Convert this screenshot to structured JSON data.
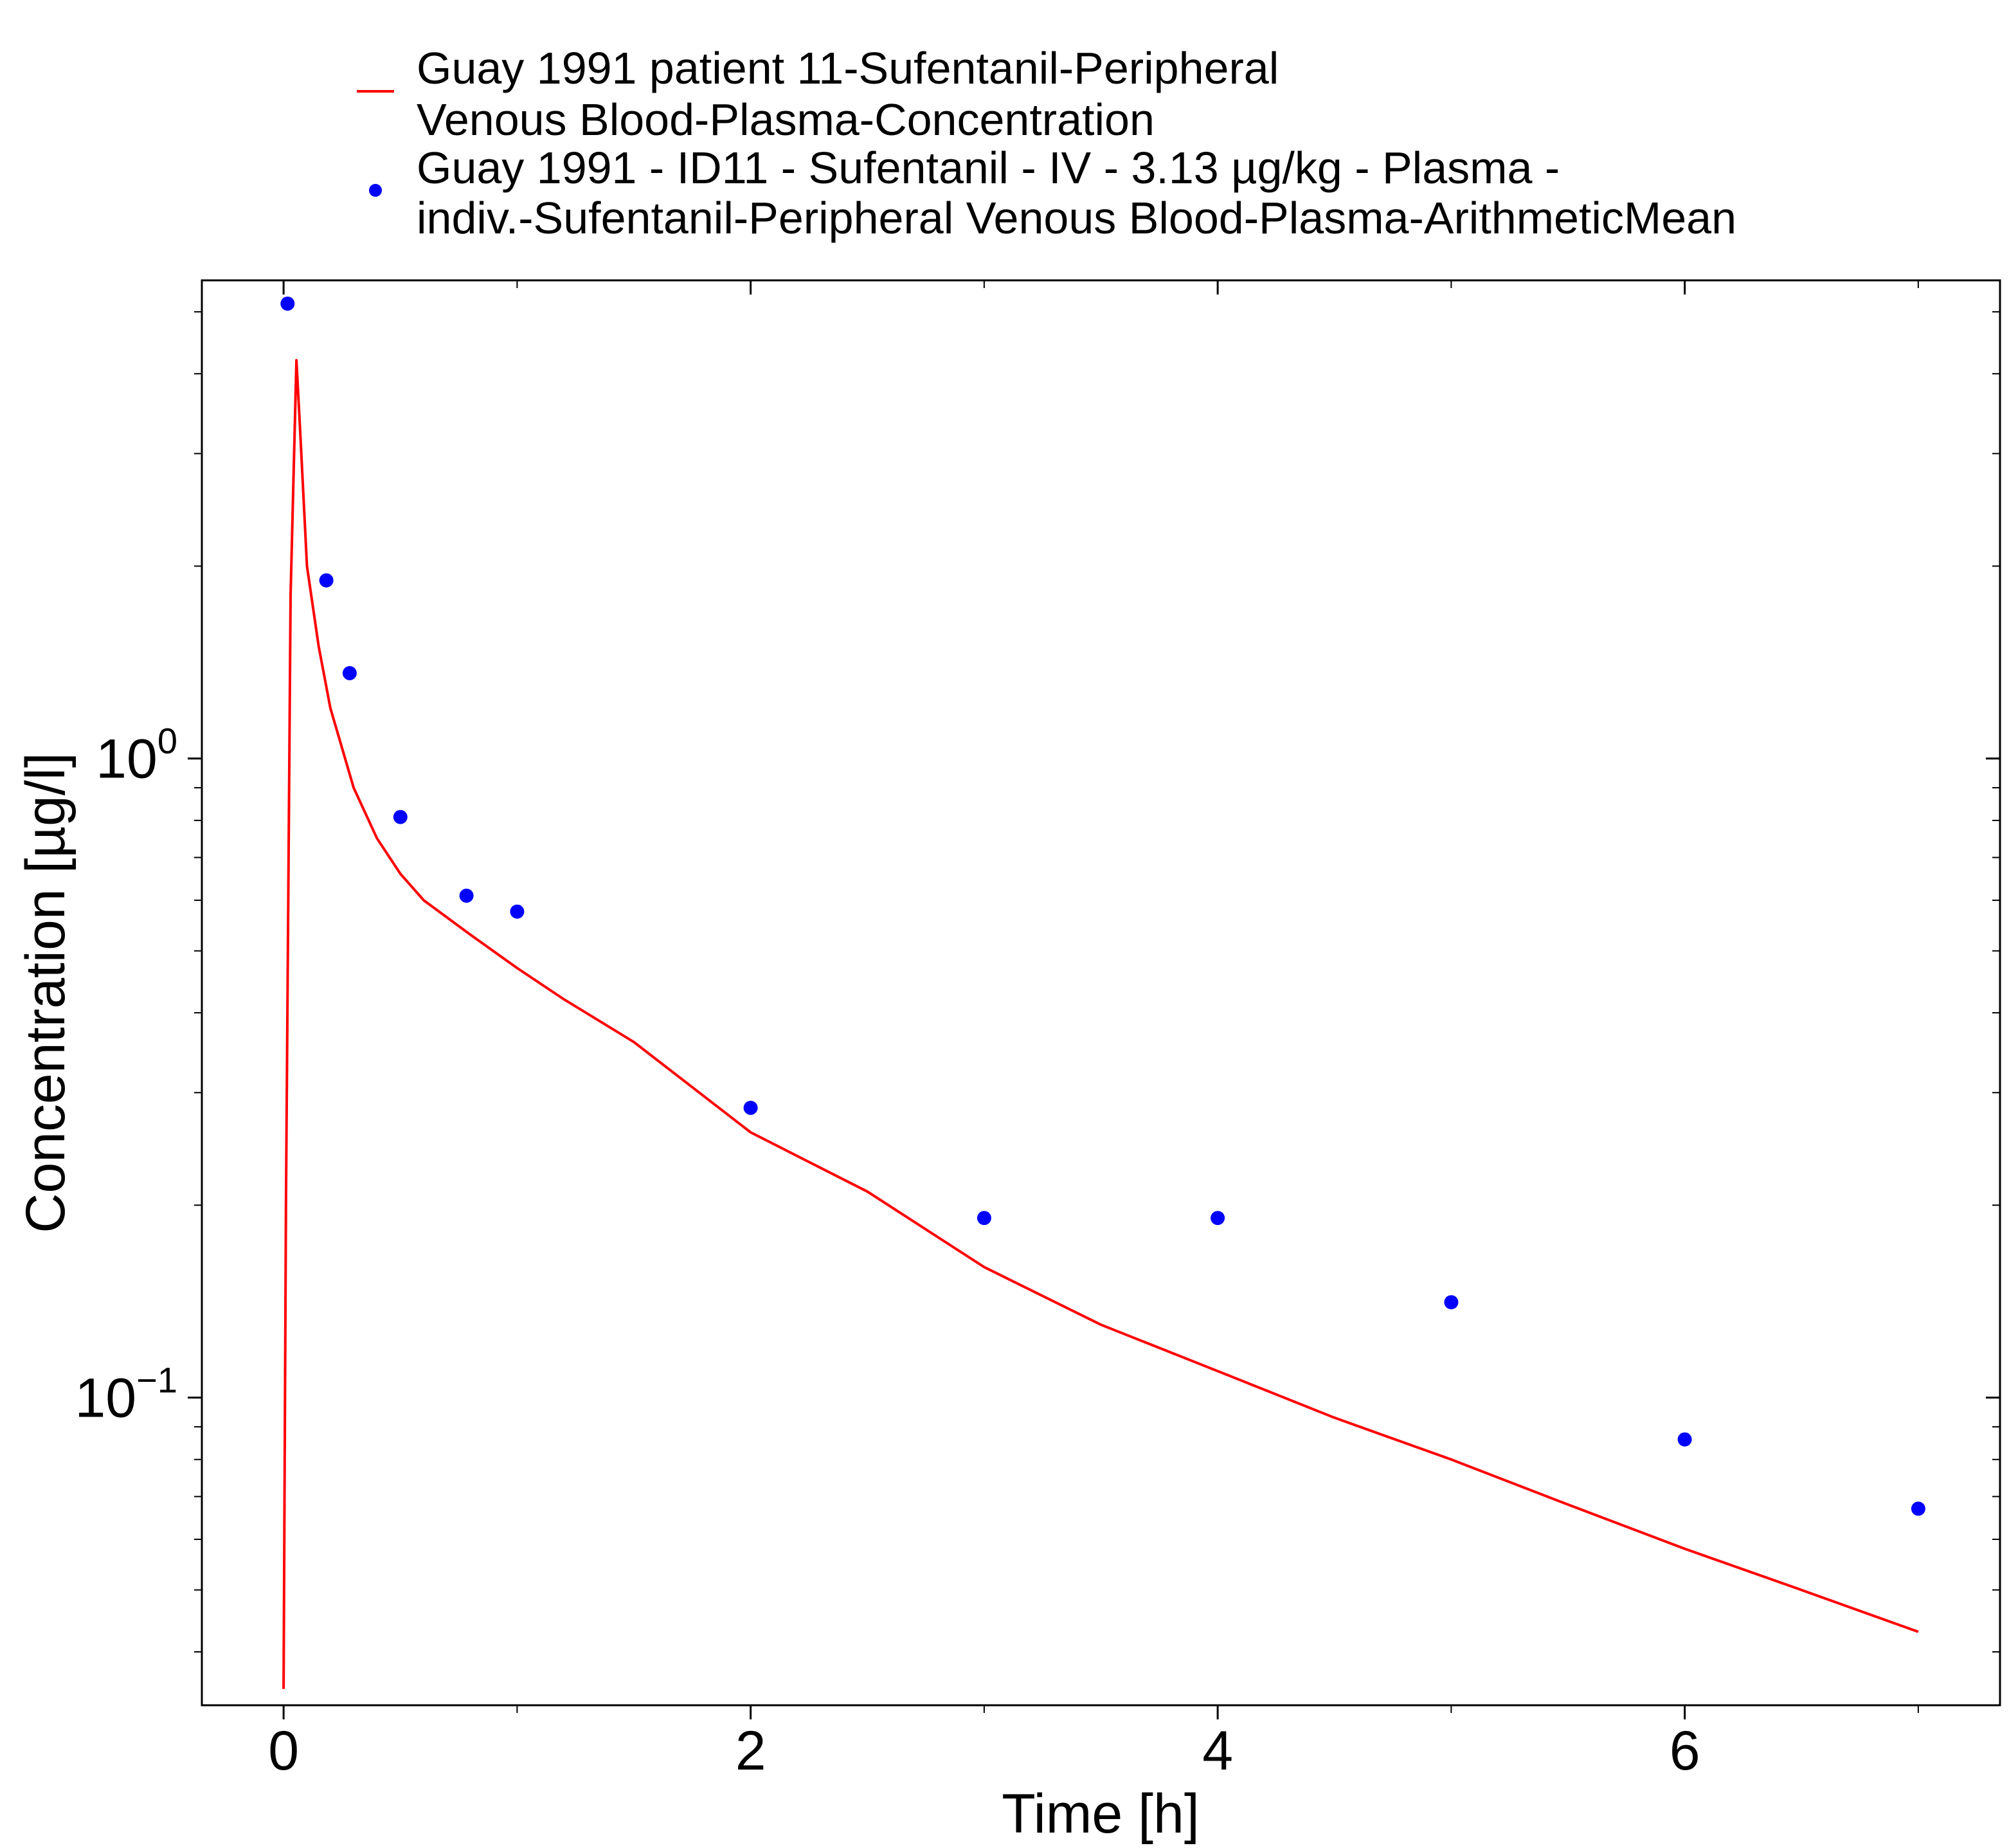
{
  "chart_data": {
    "type": "line",
    "title": "",
    "xlabel": "Time [h]",
    "ylabel": "Concentration [µg/l]",
    "xlim": [
      -0.35,
      7.35
    ],
    "ylim": [
      0.033,
      5.6
    ],
    "yscale": "log",
    "grid": false,
    "legend_position": "top",
    "x_ticks": [
      {
        "value": 0,
        "label": "0"
      },
      {
        "value": 2,
        "label": "2"
      },
      {
        "value": 4,
        "label": "4"
      },
      {
        "value": 6,
        "label": "6"
      }
    ],
    "y_ticks": [
      {
        "value": 1,
        "base": "10",
        "exp": "0"
      },
      {
        "value": 0.1,
        "base": "10",
        "exp": "−1"
      }
    ],
    "series": [
      {
        "name_lines": [
          "Guay 1991 patient 11-Sufentanil-Peripheral",
          "Venous Blood-Plasma-Concentration"
        ],
        "kind": "line",
        "color": "#ff0000",
        "x": [
          0.0,
          0.01,
          0.03,
          0.055,
          0.07,
          0.1,
          0.15,
          0.2,
          0.3,
          0.4,
          0.5,
          0.6,
          0.8,
          1.0,
          1.2,
          1.5,
          2.0,
          2.5,
          3.0,
          3.5,
          4.0,
          4.5,
          5.0,
          5.5,
          6.0,
          6.5,
          7.0
        ],
        "y": [
          0.035,
          0.2,
          1.8,
          4.2,
          3.3,
          2.0,
          1.5,
          1.2,
          0.9,
          0.75,
          0.66,
          0.6,
          0.53,
          0.47,
          0.42,
          0.36,
          0.26,
          0.21,
          0.16,
          0.13,
          0.11,
          0.093,
          0.08,
          0.068,
          0.058,
          0.05,
          0.043
        ]
      },
      {
        "name_lines": [
          "Guay 1991 - ID11 - Sufentanil - IV - 3.13 µg/kg - Plasma -",
          "indiv.-Sufentanil-Peripheral Venous Blood-Plasma-ArithmeticMean"
        ],
        "kind": "scatter",
        "color": "#0000ff",
        "x": [
          0.017,
          0.183,
          0.283,
          0.5,
          0.783,
          1.0,
          2.0,
          3.0,
          4.0,
          5.0,
          6.0,
          7.0
        ],
        "y": [
          5.15,
          1.9,
          1.36,
          0.81,
          0.61,
          0.576,
          0.284,
          0.191,
          0.191,
          0.141,
          0.086,
          0.067
        ]
      }
    ]
  }
}
